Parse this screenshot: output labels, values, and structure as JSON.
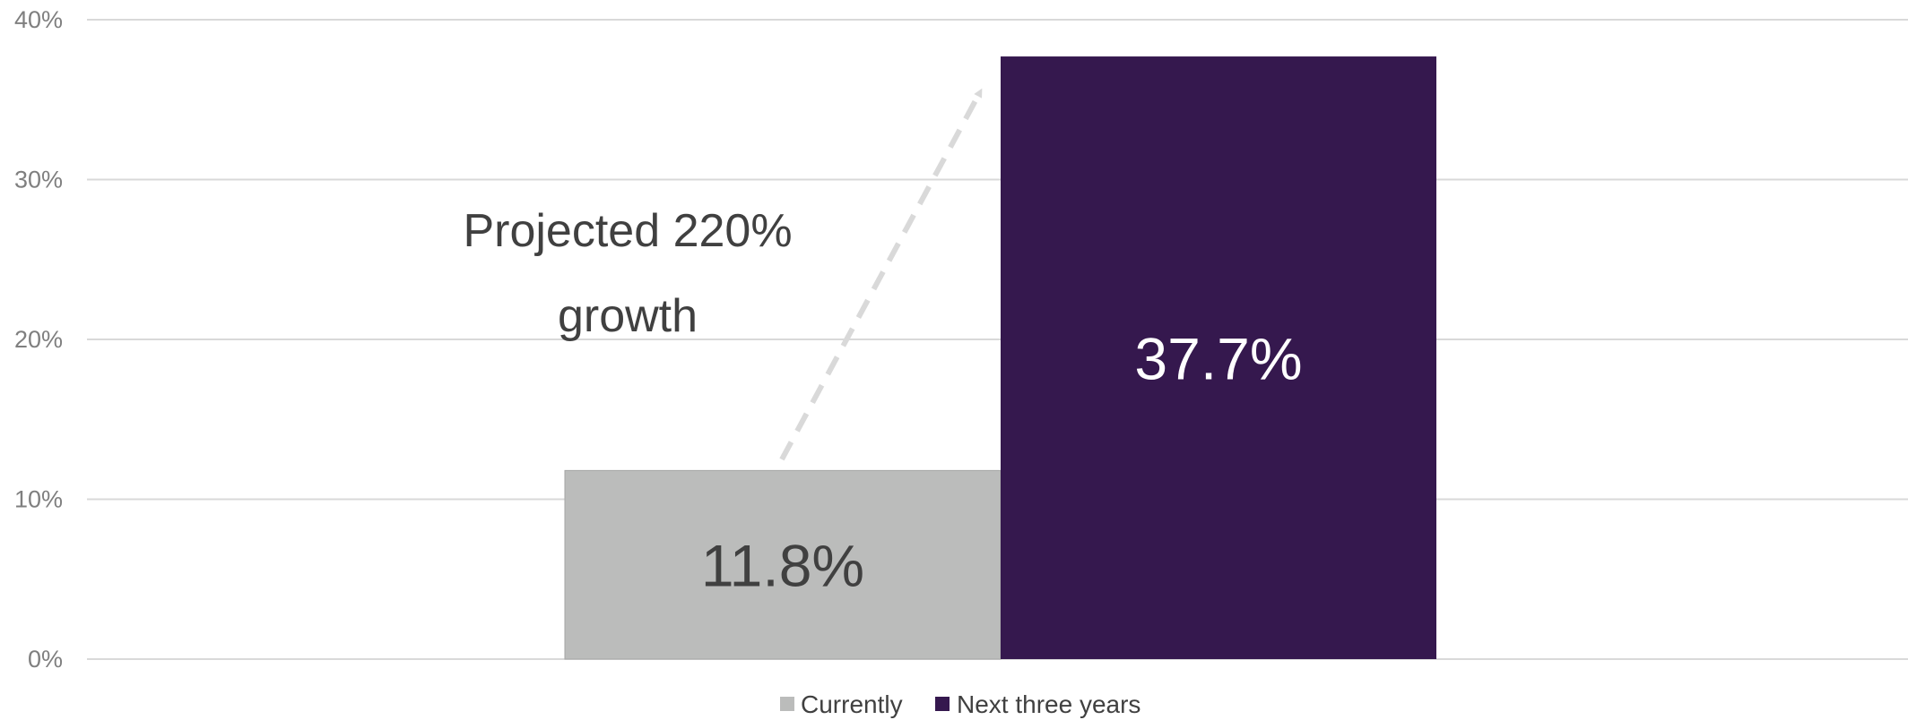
{
  "chart_data": {
    "type": "bar",
    "title": "",
    "xlabel": "",
    "ylabel": "",
    "categories": [
      ""
    ],
    "series": [
      {
        "name": "Currently",
        "values": [
          11.8
        ],
        "label": "11.8%",
        "color": "#bbbcbb",
        "label_color": "#404040"
      },
      {
        "name": "Next three years",
        "values": [
          37.7
        ],
        "label": "37.7%",
        "color": "#35184e",
        "label_color": "#ffffff"
      }
    ],
    "ylim": [
      0,
      40
    ],
    "yticks": [
      0,
      10,
      20,
      30,
      40
    ],
    "ytick_labels": [
      "0%",
      "10%",
      "20%",
      "30%",
      "40%"
    ],
    "grid": true,
    "legend_position": "bottom",
    "annotation": {
      "lines": [
        "Projected 220%",
        "growth"
      ],
      "arrow": "dashed",
      "arrow_color": "#d9d9d9"
    }
  }
}
